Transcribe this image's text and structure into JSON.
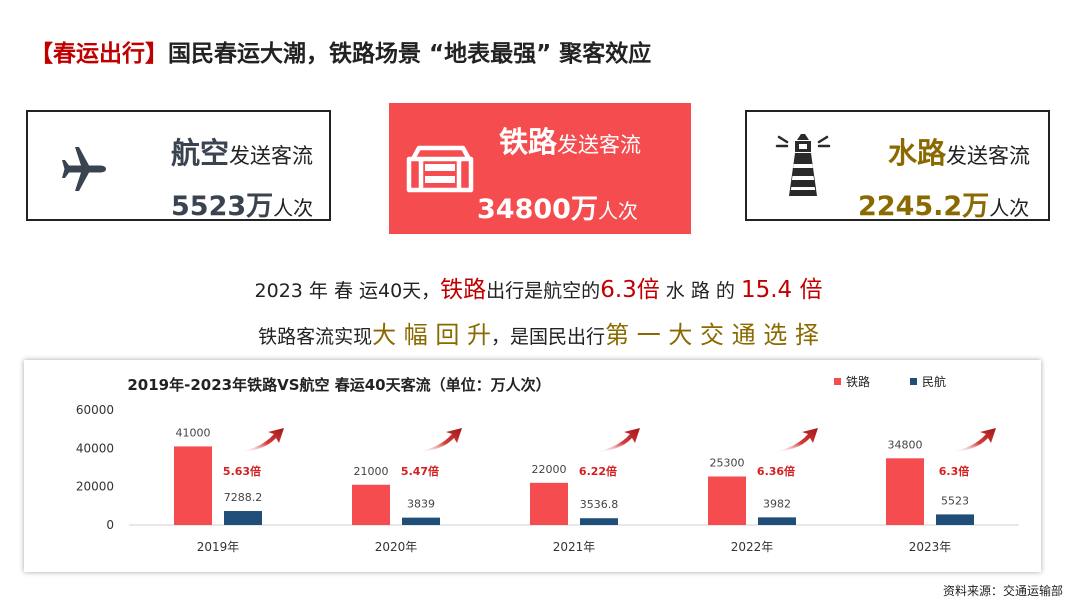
{
  "header": {
    "tag": "【春运出行】",
    "title": "国民春运大潮，铁路场景 “地表最强” 聚客效应"
  },
  "cards": {
    "air": {
      "mode": "航空",
      "label": "发送客流",
      "value": "5523",
      "unit": "万",
      "suffix": "人次",
      "color": "#3a4450"
    },
    "rail": {
      "mode": "铁路",
      "label": "发送客流",
      "value": "34800",
      "unit": "万",
      "suffix": "人次",
      "color": "#ffffff"
    },
    "water": {
      "mode": "水路",
      "label": "发送客流",
      "value": "2245.2",
      "unit": "万",
      "suffix": "人次",
      "color": "#8a6a00"
    }
  },
  "summary": {
    "l1_a": "2023 年 春 运40天，",
    "l1_rail": "铁路",
    "l1_b": "出行是航空的",
    "l1_x1": "6.3倍",
    "l1_c": " 水 路 的 ",
    "l1_x2": "15.4 倍",
    "l2_a": "铁路客流实现",
    "l2_b": "大 幅 回 升",
    "l2_c": "，是国民出行",
    "l2_d": "第 一 大 交 通 选 择"
  },
  "chart_data": {
    "type": "bar",
    "title": "2019年-2023年铁路VS航空 春运40天客流（单位：万人次）",
    "categories": [
      "2019年",
      "2020年",
      "2021年",
      "2022年",
      "2023年"
    ],
    "series": [
      {
        "name": "铁路",
        "color": "#f44c4f",
        "values": [
          41000,
          21000,
          22000,
          25300,
          34800
        ],
        "labels": [
          "41000",
          "21000",
          "22000",
          "25300",
          "34800"
        ]
      },
      {
        "name": "民航",
        "color": "#1f4e79",
        "values": [
          7288.2,
          3839,
          3536.8,
          3982,
          5523
        ],
        "labels": [
          "7288.2",
          "3839",
          "3536.8",
          "3982",
          "5523"
        ]
      }
    ],
    "ratios": [
      "5.63倍",
      "5.47倍",
      "6.22倍",
      "6.36倍",
      "6.3倍"
    ],
    "ylim": [
      0,
      60000
    ],
    "yticks": [
      "0",
      "20000",
      "40000",
      "60000"
    ],
    "legend": "top-right",
    "grid": false
  },
  "source": "资料来源：交通运输部"
}
